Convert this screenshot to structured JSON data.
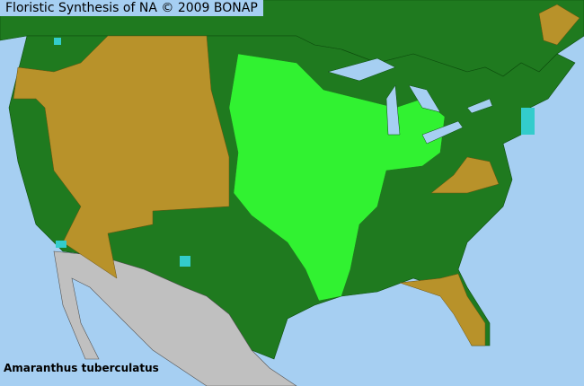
{
  "title": "Floristic Synthesis of NA © 2009 BONAP",
  "species": "Amaranthus tuberculatus",
  "colors": {
    "ocean": "#a6cff2",
    "native_state": "#1f7a1f",
    "absent_state": "#b8922a",
    "present_county": "#33ff33",
    "rare_county": "#33cccc",
    "outside_range": "#c0c0c0"
  }
}
